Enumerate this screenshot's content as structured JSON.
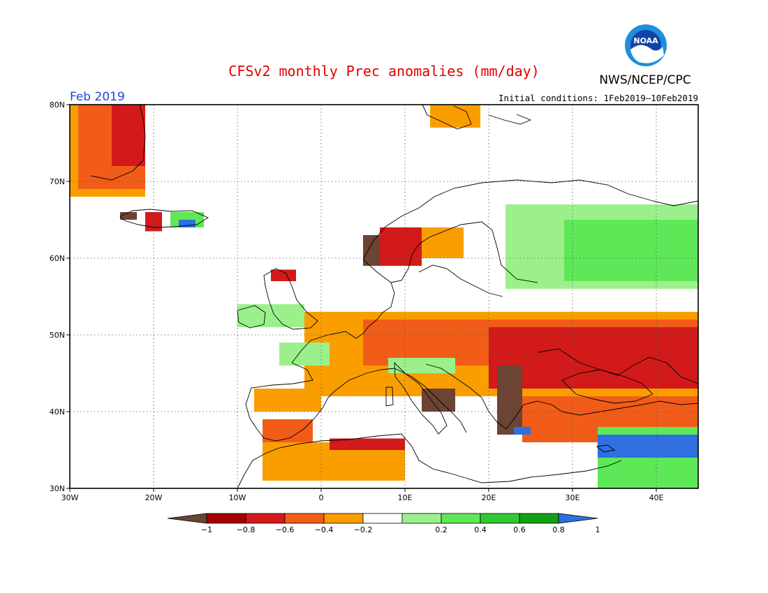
{
  "header": {
    "title": "CFSv2 monthly Prec anomalies (mm/day)",
    "org": "NWS/NCEP/CPC",
    "month": "Feb 2019",
    "initial_conditions": "Initial conditions: 1Feb2019—10Feb2019",
    "logo_text": "NOAA"
  },
  "map": {
    "projection": "equirectangular",
    "lon_range": [
      -30,
      45
    ],
    "lat_range": [
      30,
      80
    ],
    "lon_ticks": [
      {
        "value": -30,
        "label": "30W"
      },
      {
        "value": -20,
        "label": "20W"
      },
      {
        "value": -10,
        "label": "10W"
      },
      {
        "value": 0,
        "label": "0"
      },
      {
        "value": 10,
        "label": "10E"
      },
      {
        "value": 20,
        "label": "20E"
      },
      {
        "value": 30,
        "label": "30E"
      },
      {
        "value": 40,
        "label": "40E"
      }
    ],
    "lat_ticks": [
      {
        "value": 30,
        "label": "30N"
      },
      {
        "value": 40,
        "label": "40N"
      },
      {
        "value": 50,
        "label": "50N"
      },
      {
        "value": 60,
        "label": "60N"
      },
      {
        "value": 70,
        "label": "70N"
      },
      {
        "value": 80,
        "label": "80N"
      }
    ],
    "grid": true,
    "anomaly_regions": [
      {
        "name": "greenland",
        "bin": "-0.4..-0.2",
        "cells": [
          [
            -30,
            68,
            -21,
            80
          ]
        ]
      },
      {
        "name": "greenland-core",
        "bin": "-0.6..-0.4",
        "cells": [
          [
            -29,
            69,
            -21,
            80
          ]
        ]
      },
      {
        "name": "greenland-deep",
        "bin": "-0.8..-0.6",
        "cells": [
          [
            -25,
            72,
            -21,
            80
          ]
        ]
      },
      {
        "name": "iceland-west",
        "bin": "<-1",
        "cells": [
          [
            -24,
            65,
            -22,
            66
          ]
        ]
      },
      {
        "name": "iceland-mid",
        "bin": "-0.8..-0.6",
        "cells": [
          [
            -21,
            63.5,
            -19,
            66
          ]
        ]
      },
      {
        "name": "iceland-east",
        "bin": "0.4..0.6",
        "cells": [
          [
            -18,
            64,
            -14,
            66
          ]
        ]
      },
      {
        "name": "iceland-blue",
        "bin": ">1",
        "cells": [
          [
            -17,
            64,
            -15,
            65
          ]
        ]
      },
      {
        "name": "svalbard",
        "bin": "-0.4..-0.2",
        "cells": [
          [
            13,
            77,
            19,
            80
          ]
        ]
      },
      {
        "name": "scandinavia-coast",
        "bin": "<-1",
        "cells": [
          [
            5,
            59,
            8,
            63
          ]
        ]
      },
      {
        "name": "scandinavia-red",
        "bin": "-0.8..-0.6",
        "cells": [
          [
            7,
            59,
            12,
            64
          ]
        ]
      },
      {
        "name": "finland-orange",
        "bin": "-0.4..-0.2",
        "cells": [
          [
            12,
            60,
            17,
            64
          ]
        ]
      },
      {
        "name": "north-russia",
        "bin": "0.2..0.4",
        "cells": [
          [
            22,
            56,
            45,
            67
          ]
        ]
      },
      {
        "name": "north-russia-core",
        "bin": "0.4..0.6",
        "cells": [
          [
            29,
            57,
            45,
            65
          ]
        ]
      },
      {
        "name": "scotland",
        "bin": "-0.8..-0.6",
        "cells": [
          [
            -6,
            57,
            -3,
            58.5
          ]
        ]
      },
      {
        "name": "ireland-uk",
        "bin": "0.2..0.4",
        "cells": [
          [
            -10,
            51,
            -2,
            54
          ]
        ]
      },
      {
        "name": "central-europe",
        "bin": "-0.4..-0.2",
        "cells": [
          [
            -2,
            42,
            45,
            53
          ]
        ]
      },
      {
        "name": "central-europe-mid",
        "bin": "-0.6..-0.4",
        "cells": [
          [
            5,
            46,
            45,
            52
          ]
        ]
      },
      {
        "name": "east-europe-core",
        "bin": "-0.8..-0.6",
        "cells": [
          [
            20,
            43,
            45,
            51
          ]
        ]
      },
      {
        "name": "balkans",
        "bin": "<-1",
        "cells": [
          [
            21,
            37,
            24,
            46
          ]
        ]
      },
      {
        "name": "alps",
        "bin": "0.2..0.4",
        "cells": [
          [
            8,
            45,
            16,
            47
          ]
        ]
      },
      {
        "name": "france-west",
        "bin": "0.2..0.4",
        "cells": [
          [
            -5,
            46,
            1,
            49
          ]
        ]
      },
      {
        "name": "iberia-north",
        "bin": "-0.4..-0.2",
        "cells": [
          [
            -8,
            40,
            0,
            43
          ]
        ]
      },
      {
        "name": "iberia-south",
        "bin": "-0.6..-0.4",
        "cells": [
          [
            -7,
            36,
            -1,
            39
          ]
        ]
      },
      {
        "name": "north-africa",
        "bin": "-0.4..-0.2",
        "cells": [
          [
            -7,
            31,
            10,
            36
          ]
        ]
      },
      {
        "name": "algeria-tunisia",
        "bin": "-0.8..-0.6",
        "cells": [
          [
            1,
            35,
            10,
            36.5
          ]
        ]
      },
      {
        "name": "italy",
        "bin": "<-1",
        "cells": [
          [
            12,
            40,
            16,
            43
          ]
        ]
      },
      {
        "name": "greece-turkey",
        "bin": "-0.6..-0.4",
        "cells": [
          [
            24,
            36,
            45,
            42
          ]
        ]
      },
      {
        "name": "east-med",
        "bin": "0.4..0.6",
        "cells": [
          [
            33,
            30,
            45,
            38
          ]
        ]
      },
      {
        "name": "east-med-blue",
        "bin": ">1",
        "cells": [
          [
            33,
            34,
            45,
            37
          ]
        ]
      },
      {
        "name": "aegean-blue",
        "bin": ">1",
        "cells": [
          [
            23,
            37,
            25,
            38
          ]
        ]
      }
    ]
  },
  "colorbar": {
    "bins": [
      {
        "range": "<-1",
        "color": "#6b4434"
      },
      {
        "range": "-1..-0.8",
        "color": "#a50000"
      },
      {
        "range": "-0.8..-0.6",
        "color": "#d21a1a"
      },
      {
        "range": "-0.6..-0.4",
        "color": "#f25c19"
      },
      {
        "range": "-0.4..-0.2",
        "color": "#fa9e00"
      },
      {
        "range": "-0.2..0.2",
        "color": "#ffffff"
      },
      {
        "range": "0.2..0.4",
        "color": "#9cf08c"
      },
      {
        "range": "0.4..0.6",
        "color": "#5ee858"
      },
      {
        "range": "0.6..0.8",
        "color": "#32c832"
      },
      {
        "range": "0.8..1",
        "color": "#14a014"
      },
      {
        "range": ">1",
        "color": "#2f6fe0"
      }
    ],
    "labels": [
      "−1",
      "−0.8",
      "−0.6",
      "−0.4",
      "−0.2",
      "0.2",
      "0.4",
      "0.6",
      "0.8",
      "1"
    ]
  }
}
